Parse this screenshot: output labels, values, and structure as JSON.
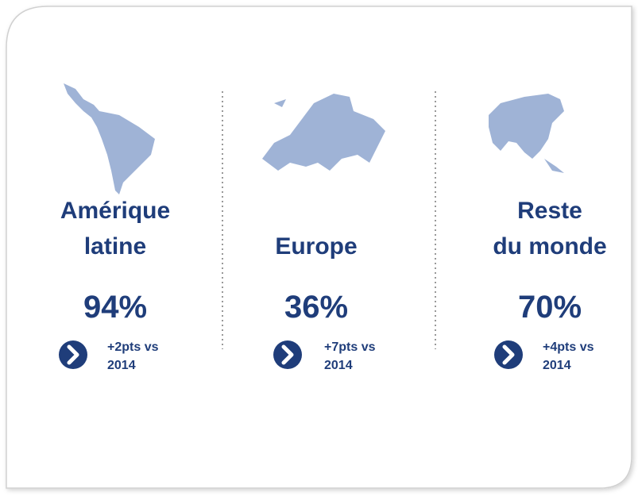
{
  "regions": [
    {
      "name": [
        "Amérique",
        "latine"
      ],
      "value": "94%",
      "change": [
        "+2pts vs",
        "2014"
      ]
    },
    {
      "name": [
        "Europe"
      ],
      "value": "36%",
      "change": [
        "+7pts vs",
        "2014"
      ]
    },
    {
      "name": [
        "Reste",
        "du monde"
      ],
      "value": "70%",
      "change": [
        "+4pts vs",
        "2014"
      ]
    }
  ]
}
